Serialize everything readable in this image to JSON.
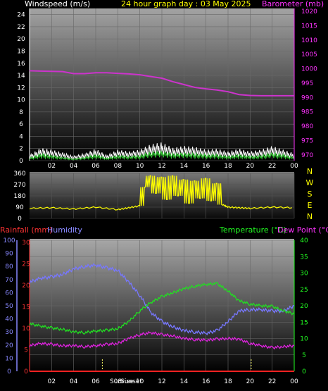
{
  "chart_data": [
    {
      "type": "line",
      "title": "24 hour graph day : 03 May 2025",
      "left_label": "Windspeed (m/s)",
      "right_label": "Barometer (mb)",
      "x_ticks": [
        "02",
        "04",
        "06",
        "08",
        "10",
        "12",
        "14",
        "16",
        "18",
        "20",
        "22",
        "00"
      ],
      "y_ticks": [
        0,
        2,
        4,
        6,
        8,
        10,
        12,
        14,
        16,
        18,
        20,
        22,
        24
      ],
      "y2_ticks": [
        970,
        975,
        980,
        985,
        990,
        995,
        1000,
        1005,
        1010,
        1015,
        1020
      ],
      "ylim": [
        0,
        25
      ],
      "y2lim": [
        968,
        1021
      ],
      "series": [
        {
          "color": "#cc33cc",
          "axis": "right",
          "x": [
            0,
            1,
            2,
            3,
            4,
            5,
            6,
            7,
            8,
            9,
            10,
            11,
            12,
            13,
            14,
            15,
            16,
            17,
            18,
            19,
            20,
            21,
            22,
            23,
            24
          ],
          "values": [
            999.3,
            999.2,
            999.1,
            999.0,
            998.3,
            998.3,
            998.6,
            998.6,
            998.4,
            998.2,
            997.9,
            997.3,
            996.7,
            995.5,
            994.5,
            993.5,
            993.0,
            992.6,
            992.0,
            991.0,
            990.7,
            990.6,
            990.6,
            990.6,
            990.6
          ]
        },
        {
          "color": "#ffffff",
          "axis": "left",
          "x": [
            0,
            1,
            2,
            3,
            4,
            5,
            6,
            7,
            8,
            9,
            10,
            11,
            12,
            13,
            14,
            15,
            16,
            17,
            18,
            19,
            20,
            21,
            22,
            23,
            24
          ],
          "values": [
            0.6,
            1.4,
            1.2,
            0.9,
            0.5,
            0.8,
            1.3,
            0.6,
            1.2,
            1.0,
            1.2,
            1.8,
            2.0,
            1.4,
            1.6,
            1.5,
            1.2,
            1.3,
            1.0,
            1.3,
            1.0,
            1.2,
            1.6,
            1.2,
            0.8
          ]
        },
        {
          "color": "#33cc33",
          "axis": "left",
          "x": [
            0,
            1,
            2,
            3,
            4,
            5,
            6,
            7,
            8,
            9,
            10,
            11,
            12,
            13,
            14,
            15,
            16,
            17,
            18,
            19,
            20,
            21,
            22,
            23,
            24
          ],
          "values": [
            0.3,
            0.8,
            0.6,
            0.4,
            0.2,
            0.4,
            0.7,
            0.3,
            0.6,
            0.5,
            0.6,
            1.0,
            1.1,
            0.8,
            0.9,
            0.8,
            0.7,
            0.7,
            0.5,
            0.7,
            0.5,
            0.6,
            0.9,
            0.7,
            0.4
          ]
        }
      ]
    },
    {
      "type": "line",
      "title": "",
      "y_ticks": [
        0,
        90,
        180,
        270,
        360
      ],
      "ylim": [
        0,
        360
      ],
      "compass": [
        "N",
        "W",
        "S",
        "E",
        "N"
      ],
      "series": [
        {
          "color": "#ffff00",
          "x": [
            0,
            2,
            4,
            6,
            8,
            9,
            10,
            10.5,
            11,
            11.5,
            12,
            12.5,
            13,
            13.5,
            14,
            14.5,
            15,
            15.5,
            16,
            16.5,
            17,
            17.5,
            18,
            19,
            20,
            22,
            24
          ],
          "values": [
            80,
            85,
            75,
            90,
            70,
            85,
            100,
            250,
            340,
            200,
            330,
            150,
            340,
            180,
            310,
            120,
            300,
            160,
            320,
            140,
            280,
            110,
            90,
            85,
            80,
            90,
            85
          ]
        }
      ]
    },
    {
      "type": "line",
      "left_label_1": "Rainfall (mm)",
      "left_label_2": "Humidity",
      "right_label_1": "Temperature (°C)",
      "right_label_2": "Dew Point (°C)",
      "x_ticks": [
        "02",
        "04",
        "06",
        "08",
        "10",
        "12",
        "14",
        "16",
        "18",
        "20",
        "22",
        "00"
      ],
      "humidity_ticks": [
        0,
        10,
        20,
        30,
        40,
        50,
        60,
        70,
        80,
        90,
        100
      ],
      "rain_ticks": [
        0,
        5,
        10,
        15,
        20,
        25,
        30
      ],
      "temp_ticks": [
        0,
        5,
        10,
        15,
        20,
        25,
        30,
        35,
        40
      ],
      "sunrise_label": "Sunrise",
      "sunset_label": "Sunset",
      "sunrise_hour": 6.6,
      "sunset_hour": 20.1,
      "series": [
        {
          "name": "Humidity",
          "color": "#7777ff",
          "axis": "humidity",
          "x": [
            0,
            1,
            2,
            3,
            4,
            5,
            6,
            7,
            8,
            9,
            10,
            11,
            12,
            13,
            14,
            15,
            16,
            17,
            18,
            19,
            20,
            21,
            22,
            23,
            24
          ],
          "values": [
            68,
            71,
            72,
            74,
            78,
            80,
            81,
            79,
            77,
            68,
            58,
            45,
            38,
            34,
            31,
            30,
            29,
            31,
            38,
            46,
            47,
            47,
            46,
            46,
            50
          ]
        },
        {
          "name": "Temperature",
          "color": "#22dd22",
          "axis": "temp",
          "x": [
            0,
            1,
            2,
            3,
            4,
            5,
            6,
            7,
            8,
            9,
            10,
            11,
            12,
            13,
            14,
            15,
            16,
            17,
            18,
            19,
            20,
            21,
            22,
            23,
            24
          ],
          "values": [
            14.5,
            13.8,
            13.2,
            12.8,
            12.0,
            11.8,
            12.3,
            12.5,
            13.0,
            15.2,
            18.5,
            21.0,
            22.8,
            24.0,
            25.2,
            26.0,
            26.5,
            26.8,
            24.5,
            21.5,
            20.5,
            20.0,
            19.8,
            18.5,
            17.5
          ]
        },
        {
          "name": "Dew Point",
          "color": "#dd22dd",
          "axis": "temp",
          "x": [
            0,
            1,
            2,
            3,
            4,
            5,
            6,
            7,
            8,
            9,
            10,
            11,
            12,
            13,
            14,
            15,
            16,
            17,
            18,
            19,
            20,
            21,
            22,
            23,
            24
          ],
          "values": [
            7.8,
            8.5,
            8.2,
            7.8,
            7.8,
            7.5,
            7.8,
            8.2,
            8.5,
            10.0,
            11.2,
            11.8,
            11.2,
            10.8,
            10.0,
            9.7,
            9.5,
            9.8,
            10.0,
            9.8,
            8.5,
            7.8,
            7.2,
            7.5,
            7.8
          ]
        },
        {
          "name": "Rainfall",
          "color": "#ff2222",
          "axis": "rain",
          "x": [
            0,
            24
          ],
          "values": [
            0,
            0
          ]
        }
      ]
    }
  ]
}
